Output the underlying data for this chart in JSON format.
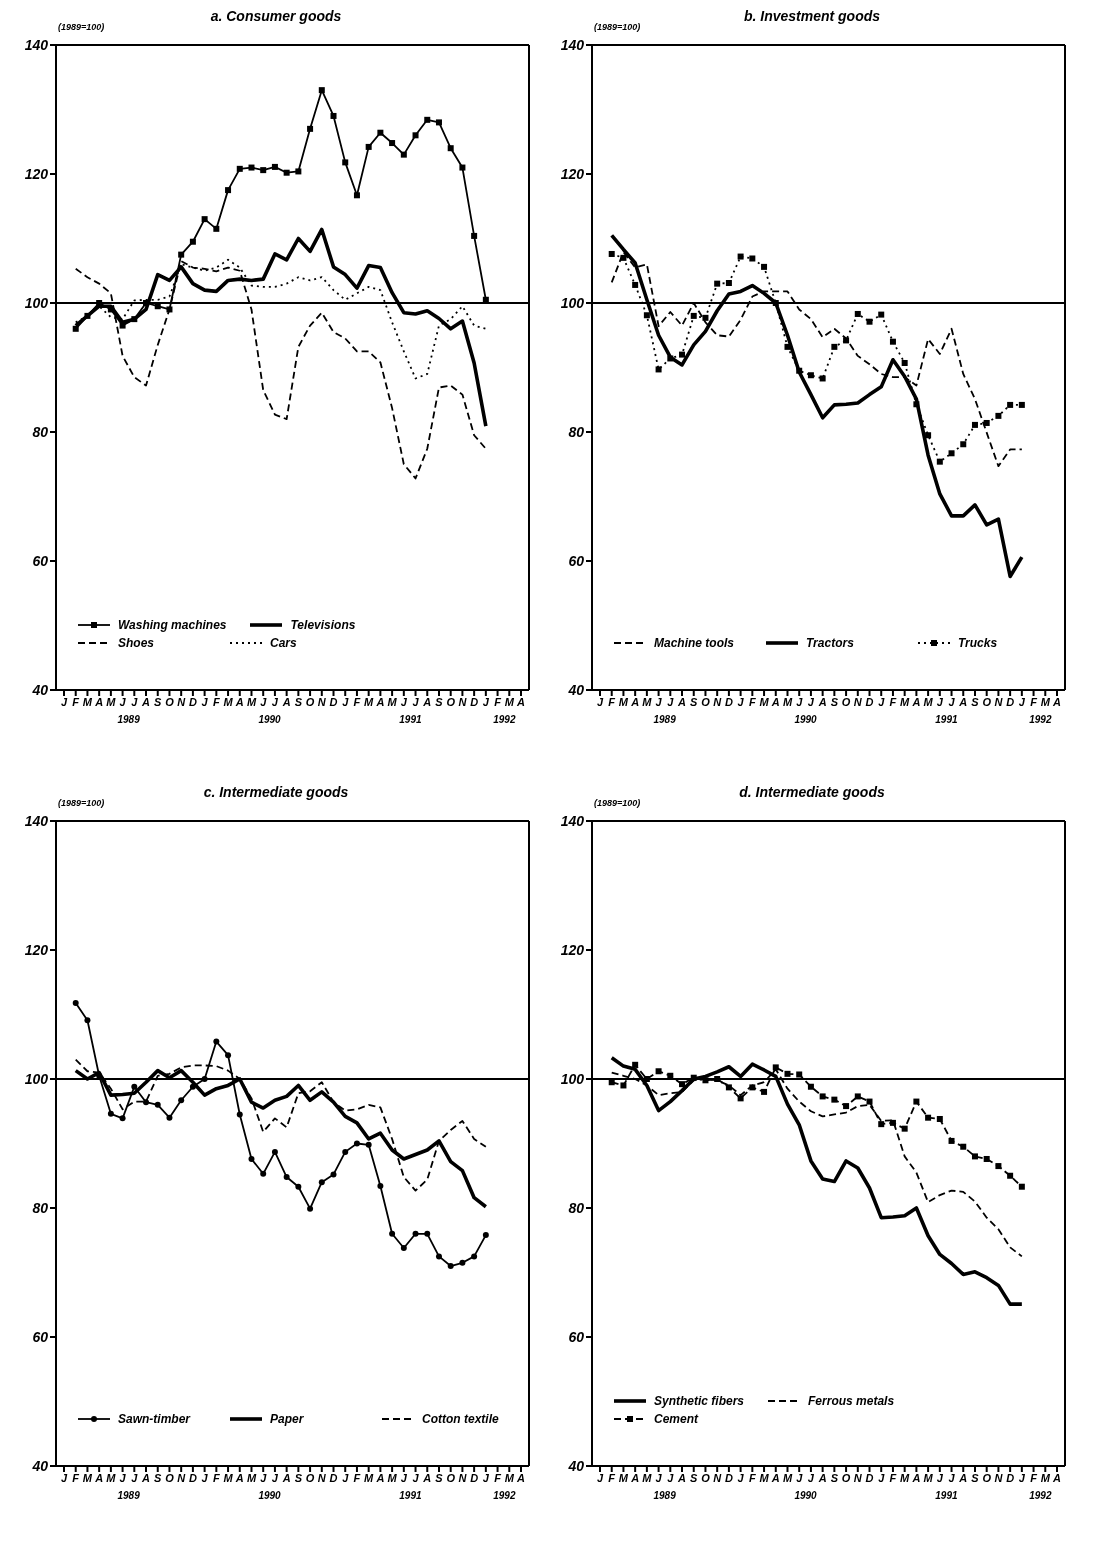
{
  "chart_data": [
    {
      "type": "line",
      "title": "a. Consumer goods",
      "ylabel": "(1989=100)",
      "categories": [
        "J",
        "F",
        "M",
        "A",
        "M",
        "J",
        "J",
        "A",
        "S",
        "O",
        "N",
        "D",
        "J",
        "F",
        "M",
        "A",
        "M",
        "J",
        "J",
        "A",
        "S",
        "O",
        "N",
        "D",
        "J",
        "F",
        "M",
        "A",
        "M",
        "J",
        "J",
        "A",
        "S",
        "O",
        "N",
        "D",
        "J",
        "F",
        "M",
        "A"
      ],
      "series": [
        {
          "name": "Washing machines",
          "color": "#000000",
          "line_style": "solid",
          "marker": "square",
          "values": [
            null,
            96,
            98,
            100,
            99,
            96.5,
            97.5,
            100,
            99.5,
            99,
            107.5,
            109.5,
            113,
            111.5,
            117.5,
            120.8,
            121,
            120.6,
            121.1,
            120.2,
            120.4,
            127,
            133,
            129,
            121.8,
            116.7,
            124.2,
            126.4,
            124.8,
            123,
            126,
            128.4,
            128,
            124,
            121,
            110.4,
            100.5,
            null,
            null,
            null
          ]
        },
        {
          "name": "Televisions",
          "color": "#000000",
          "line_style": "solid",
          "marker": "none",
          "values": [
            null,
            96.5,
            98,
            99.5,
            99.5,
            97,
            97.5,
            99,
            104.4,
            103.5,
            105.6,
            103,
            102,
            101.8,
            103.5,
            103.7,
            103.5,
            103.7,
            107.6,
            106.7,
            110,
            108,
            111.4,
            105.6,
            104.4,
            102.3,
            105.8,
            105.5,
            101.6,
            98.5,
            98.3,
            98.8,
            97.6,
            96,
            97.2,
            90.7,
            80.9,
            null,
            null,
            null
          ]
        },
        {
          "name": "Shoes",
          "color": "#000000",
          "line_style": "dashed",
          "marker": "none",
          "values": [
            null,
            105.3,
            104,
            103,
            101.5,
            91.8,
            88.5,
            87.2,
            93.5,
            99,
            106.5,
            105.5,
            105.3,
            104.9,
            105.5,
            105,
            99,
            86.5,
            82.7,
            82,
            93.2,
            96.5,
            98.5,
            95.5,
            94.5,
            92.5,
            92.5,
            90.8,
            83.7,
            75,
            72.8,
            77.4,
            86.9,
            87.2,
            85.8,
            79.5,
            77.4,
            null,
            null,
            null
          ]
        },
        {
          "name": "Cars",
          "color": "#000000",
          "line_style": "dotted",
          "marker": "none",
          "values": [
            null,
            97,
            98,
            99.5,
            97.8,
            97.5,
            100.4,
            100.5,
            100.5,
            101,
            106,
            105.5,
            105,
            105.5,
            106.7,
            105.5,
            102.7,
            102.5,
            102.5,
            103,
            104,
            103.5,
            104,
            102,
            100.5,
            101.5,
            102.5,
            102,
            97,
            92.5,
            88.3,
            89,
            96.5,
            97.5,
            99.5,
            96.5,
            96,
            null,
            null,
            null
          ]
        }
      ],
      "ylim": [
        40,
        140
      ],
      "yticks": [
        40,
        60,
        80,
        100,
        120,
        140
      ],
      "ref_lines": [
        {
          "axis": "y",
          "value": 100,
          "color": "#000000"
        }
      ],
      "legend": "bottom",
      "annotations": [
        "1989",
        "1990",
        "1991",
        "1992"
      ]
    },
    {
      "type": "line",
      "title": "b. Investment goods",
      "ylabel": "(1989=100)",
      "categories": [
        "J",
        "F",
        "M",
        "A",
        "M",
        "J",
        "J",
        "A",
        "S",
        "O",
        "N",
        "D",
        "J",
        "F",
        "M",
        "A",
        "M",
        "J",
        "J",
        "A",
        "S",
        "O",
        "N",
        "D",
        "J",
        "F",
        "M",
        "A",
        "M",
        "J",
        "J",
        "A",
        "S",
        "O",
        "N",
        "D",
        "J",
        "F",
        "M",
        "A"
      ],
      "series": [
        {
          "name": "Machine tools",
          "color": "#000000",
          "line_style": "dashed",
          "marker": "none",
          "values": [
            null,
            103.2,
            107.9,
            105.5,
            106,
            96.4,
            98.6,
            96.5,
            100,
            97,
            95,
            94.8,
            97.4,
            101,
            101.8,
            101.8,
            101.8,
            99,
            97.5,
            94.7,
            96,
            94.5,
            91.8,
            90.5,
            89,
            88.5,
            88.5,
            87.2,
            94.4,
            92.1,
            96,
            89,
            85.1,
            79.9,
            74.7,
            77.3,
            77.3,
            null,
            null,
            null
          ]
        },
        {
          "name": "Tractors",
          "color": "#000000",
          "line_style": "solid",
          "marker": "none",
          "values": [
            null,
            110.5,
            108.3,
            106.2,
            100.5,
            95,
            91.6,
            90.4,
            93.5,
            95.6,
            98.8,
            101.4,
            101.8,
            102.7,
            101.5,
            100,
            95,
            89.3,
            85.8,
            82.2,
            84.2,
            84.3,
            84.5,
            85.8,
            87,
            91.2,
            88.6,
            85.1,
            76.4,
            70.4,
            67,
            67,
            68.7,
            65.6,
            66.5,
            57.6,
            60.6,
            null,
            null,
            null
          ]
        },
        {
          "name": "Trucks",
          "color": "#000000",
          "line_style": "dotted",
          "marker": "square",
          "values": [
            null,
            107.6,
            107,
            102.8,
            98.1,
            89.7,
            91.4,
            92,
            98,
            97.7,
            103,
            103.1,
            107.2,
            106.9,
            105.6,
            100,
            93.2,
            89.5,
            88.8,
            88.3,
            93.2,
            94.2,
            98.3,
            97.1,
            98.2,
            94,
            90.7,
            84.3,
            79.5,
            75.4,
            76.7,
            78.1,
            81.1,
            81.4,
            82.5,
            84.2,
            84.2,
            null,
            null,
            null
          ]
        }
      ],
      "ylim": [
        40,
        140
      ],
      "yticks": [
        40,
        60,
        80,
        100,
        120,
        140
      ],
      "ref_lines": [
        {
          "axis": "y",
          "value": 100,
          "color": "#000000"
        }
      ],
      "legend": "bottom",
      "annotations": [
        "1989",
        "1990",
        "1991",
        "1992"
      ]
    },
    {
      "type": "line",
      "title": "c. Intermediate goods",
      "ylabel": "(1989=100)",
      "categories": [
        "J",
        "F",
        "M",
        "A",
        "M",
        "J",
        "J",
        "A",
        "S",
        "O",
        "N",
        "D",
        "J",
        "F",
        "M",
        "A",
        "M",
        "J",
        "J",
        "A",
        "S",
        "O",
        "N",
        "D",
        "J",
        "F",
        "M",
        "A",
        "M",
        "J",
        "J",
        "A",
        "S",
        "O",
        "N",
        "D",
        "J",
        "F",
        "M",
        "A"
      ],
      "series": [
        {
          "name": "Sawn-timber",
          "color": "#000000",
          "line_style": "solid",
          "marker": "circle",
          "values": [
            null,
            111.8,
            109.1,
            100.5,
            94.6,
            93.9,
            98.8,
            96.4,
            96,
            94,
            96.7,
            98.8,
            100,
            105.8,
            103.7,
            94.5,
            87.6,
            85.3,
            88.7,
            84.8,
            83.3,
            79.9,
            84,
            85.2,
            88.7,
            90,
            89.8,
            83.4,
            76,
            73.8,
            76,
            76,
            72.5,
            71,
            71.5,
            72.5,
            75.8,
            null,
            null,
            null
          ]
        },
        {
          "name": "Paper",
          "color": "#000000",
          "line_style": "solid",
          "marker": "none",
          "values": [
            null,
            101.3,
            100,
            101,
            97.5,
            97.6,
            97.8,
            99.5,
            101.3,
            100.2,
            101.3,
            99.5,
            97.5,
            98.5,
            99,
            100,
            96.4,
            95.5,
            96.7,
            97.3,
            99,
            96.7,
            98,
            96.4,
            94.2,
            93.2,
            90.7,
            91.6,
            89,
            87.6,
            88.3,
            89,
            90.4,
            87.2,
            85.8,
            81.6,
            80.2,
            null,
            null,
            null
          ]
        },
        {
          "name": "Cotton textile",
          "color": "#000000",
          "line_style": "dashed",
          "marker": "none",
          "values": [
            null,
            103,
            101.2,
            101,
            98.5,
            95.3,
            96.5,
            96.5,
            100.5,
            100.8,
            101.8,
            102.1,
            102.1,
            102,
            101.3,
            100,
            97,
            91.8,
            93.9,
            92.5,
            97.8,
            98.1,
            99.5,
            96.4,
            95.1,
            95.3,
            96,
            95.6,
            90.7,
            84.8,
            82.7,
            84.4,
            90.4,
            92.1,
            93.5,
            90.7,
            89.5,
            null,
            null,
            null
          ]
        }
      ],
      "ylim": [
        40,
        140
      ],
      "yticks": [
        40,
        60,
        80,
        100,
        120,
        140
      ],
      "ref_lines": [
        {
          "axis": "y",
          "value": 100,
          "color": "#000000"
        }
      ],
      "legend": "bottom",
      "annotations": [
        "1989",
        "1990",
        "1991",
        "1992"
      ]
    },
    {
      "type": "line",
      "title": "d. Intermediate goods",
      "ylabel": "(1989=100)",
      "categories": [
        "J",
        "F",
        "M",
        "A",
        "M",
        "J",
        "J",
        "A",
        "S",
        "O",
        "N",
        "D",
        "J",
        "F",
        "M",
        "A",
        "M",
        "J",
        "J",
        "A",
        "S",
        "O",
        "N",
        "D",
        "J",
        "F",
        "M",
        "A",
        "M",
        "J",
        "J",
        "A",
        "S",
        "O",
        "N",
        "D",
        "J",
        "F",
        "M",
        "A"
      ],
      "series": [
        {
          "name": "Synthetic fibers",
          "color": "#000000",
          "line_style": "solid",
          "marker": "none",
          "values": [
            null,
            103.3,
            102,
            101.5,
            99,
            95.1,
            96.5,
            98.2,
            100,
            100.4,
            101.1,
            101.9,
            100.4,
            102.3,
            101.4,
            100.4,
            96.1,
            92.9,
            87.3,
            84.5,
            84.1,
            87.3,
            86.2,
            83.1,
            78.5,
            78.6,
            78.8,
            80,
            75.7,
            72.8,
            71.4,
            69.7,
            70.1,
            69.2,
            68,
            65.1,
            65.1,
            null,
            null,
            null
          ]
        },
        {
          "name": "Ferrous metals",
          "color": "#000000",
          "line_style": "dashed",
          "marker": "none",
          "values": [
            null,
            101,
            100.5,
            100,
            99,
            97.5,
            97.8,
            98,
            99.8,
            100,
            99.8,
            99,
            97.5,
            99,
            99.5,
            101.5,
            98.5,
            96.5,
            95,
            94.2,
            94.5,
            94.8,
            95.8,
            96,
            93.5,
            93.6,
            88,
            85.5,
            80.9,
            82,
            82.7,
            82.5,
            81,
            78.5,
            76.7,
            73.9,
            72.5,
            null,
            null,
            null
          ]
        },
        {
          "name": "Cement",
          "color": "#000000",
          "line_style": "dashed",
          "marker": "square",
          "values": [
            null,
            99.5,
            99,
            102.2,
            100,
            101.2,
            100.5,
            99.2,
            100.2,
            99.8,
            100,
            98.7,
            97,
            98.7,
            98,
            101.8,
            100.8,
            100.7,
            98.8,
            97.3,
            96.8,
            95.8,
            97.3,
            96.5,
            93,
            93.2,
            92.3,
            96.5,
            94,
            93.8,
            90.4,
            89.5,
            88,
            87.6,
            86.5,
            85,
            83.3,
            null,
            null,
            null
          ]
        }
      ],
      "ylim": [
        40,
        140
      ],
      "yticks": [
        40,
        60,
        80,
        100,
        120,
        140
      ],
      "ref_lines": [
        {
          "axis": "y",
          "value": 100,
          "color": "#000000"
        }
      ],
      "legend": "bottom",
      "annotations": [
        "1989",
        "1990",
        "1991",
        "1992"
      ]
    }
  ]
}
